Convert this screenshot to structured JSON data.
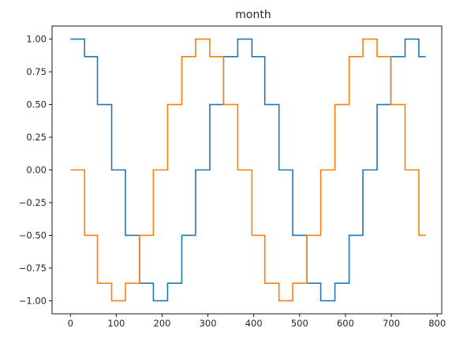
{
  "chart_data": {
    "type": "line",
    "title": "month",
    "xlabel": "",
    "ylabel": "",
    "xlim": [
      -40,
      810
    ],
    "ylim": [
      -1.1,
      1.1
    ],
    "x_ticks": [
      0,
      100,
      200,
      300,
      400,
      500,
      600,
      700,
      800
    ],
    "y_ticks": [
      -1.0,
      -0.75,
      -0.5,
      -0.25,
      0.0,
      0.25,
      0.5,
      0.75,
      1.0
    ],
    "x_tick_labels": [
      "0",
      "100",
      "200",
      "300",
      "400",
      "500",
      "600",
      "700",
      "800"
    ],
    "y_tick_labels": [
      "−1.00",
      "−0.75",
      "−0.50",
      "−0.25",
      "0.00",
      "0.25",
      "0.50",
      "0.75",
      "1.00"
    ],
    "grid": false,
    "step_breaks": [
      0,
      31,
      59,
      90,
      120,
      151,
      181,
      212,
      243,
      273,
      304,
      334,
      365,
      396,
      424,
      455,
      485,
      516,
      546,
      577,
      608,
      638,
      669,
      699,
      730,
      760,
      775
    ],
    "series": [
      {
        "color": "#1f77b4",
        "values": [
          1.0,
          0.866,
          0.5,
          0.0,
          -0.5,
          -0.866,
          -1.0,
          -0.866,
          -0.5,
          0.0,
          0.5,
          0.866,
          1.0,
          0.866,
          0.5,
          0.0,
          -0.5,
          -0.866,
          -1.0,
          -0.866,
          -0.5,
          0.0,
          0.5,
          0.866,
          1.0,
          0.866
        ]
      },
      {
        "color": "#ff7f0e",
        "values": [
          0.0,
          -0.5,
          -0.866,
          -1.0,
          -0.866,
          -0.5,
          0.0,
          0.5,
          0.866,
          1.0,
          0.866,
          0.5,
          0.0,
          -0.5,
          -0.866,
          -1.0,
          -0.866,
          -0.5,
          0.0,
          0.5,
          0.866,
          1.0,
          0.866,
          0.5,
          0.0,
          -0.5
        ]
      }
    ]
  }
}
